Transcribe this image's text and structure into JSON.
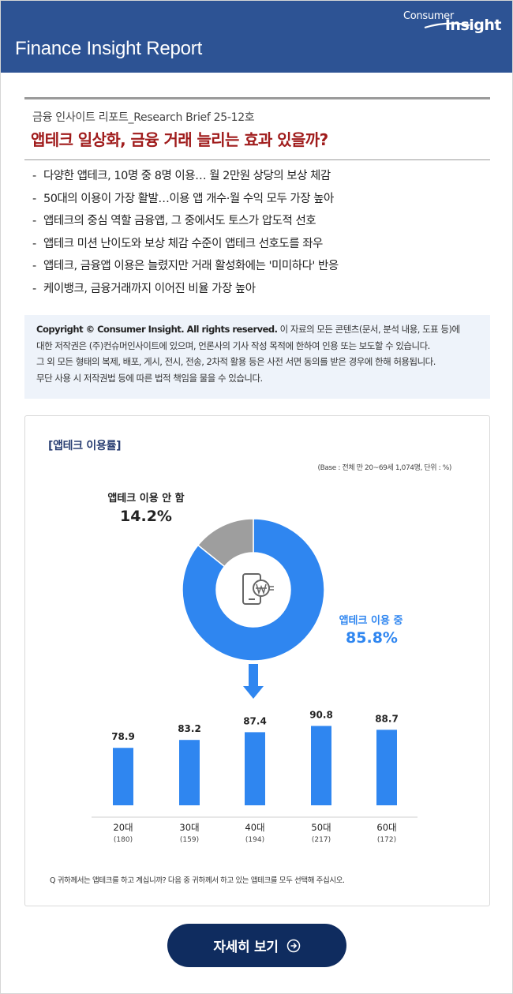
{
  "header": {
    "title": "Finance Insight Report",
    "logo_consumer": "Consumer",
    "logo_insight": "Insight"
  },
  "brief_label": "금융 인사이트 리포트_Research Brief 25-12호",
  "headline": "앱테크 일상화, 금융 거래 늘리는 효과 있을까?",
  "bullets": [
    "다양한 앱테크, 10명 중 8명 이용… 월 2만원 상당의 보상 체감",
    "50대의 이용이 가장 활발…이용 앱 개수·월 수익 모두 가장 높아",
    "앱테크의 중심 역할 금융앱, 그 중에서도 토스가 압도적 선호",
    "앱테크 미션 난이도와 보상 체감 수준이 앱테크 선호도를 좌우",
    "앱테크, 금융앱 이용은 늘렸지만 거래 활성화에는 '미미하다' 반응",
    "케이뱅크, 금융거래까지 이어진 비율 가장 높아"
  ],
  "copyright": {
    "bold": "Copyright © Consumer Insight. All rights reserved.",
    "line1_rest": " 이 자료의 모든 콘텐츠(문서, 분석 내용, 도표 등)에",
    "line2": "대한 저작권은 (주)컨슈머인사이트에 있으며, 언론사의 기사 작성 목적에 한하여 인용 또는 보도할 수 있습니다.",
    "line3": "그 외 모든 형태의 복제, 배포, 게시, 전시, 전송, 2차적 활용 등은 사전 서면 동의를 받은 경우에 한해 허용됩니다.",
    "line4": "무단 사용 시 저작권법 등에 따른 법적 책임을 물을 수 있습니다."
  },
  "card": {
    "title": "[앱테크 이용률]",
    "base_note": "(Base : 전체 만 20~69세 1,074명, 단위 : %)",
    "question": "Q   귀하께서는 앱테크를 하고 계십니까? 다음 중 귀하께서 하고 있는 앱테크를 모두 선택해 주십시오."
  },
  "chart_data": [
    {
      "type": "pie",
      "slices": [
        {
          "label": "앱테크 이용 중",
          "value": 85.8,
          "value_label": "85.8%",
          "color": "#2f86f0"
        },
        {
          "label": "앱테크 이용 안 함",
          "value": 14.2,
          "value_label": "14.2%",
          "color": "#9e9e9e"
        }
      ],
      "icon": "phone-won-icon"
    },
    {
      "type": "bar",
      "categories": [
        "20대",
        "30대",
        "40대",
        "50대",
        "60대"
      ],
      "sample_sizes": [
        "(180)",
        "(159)",
        "(194)",
        "(217)",
        "(172)"
      ],
      "values": [
        78.9,
        83.2,
        87.4,
        90.8,
        88.7
      ],
      "value_labels": [
        "78.9",
        "83.2",
        "87.4",
        "90.8",
        "88.7"
      ],
      "color": "#2f86f0",
      "ylim": [
        0,
        100
      ]
    }
  ],
  "button": {
    "label": "자세히 보기"
  },
  "colors": {
    "header_bg": "#2d5394",
    "headline": "#a01c1c",
    "accent_blue": "#2f86f0",
    "button_bg": "#0f2c5f"
  }
}
